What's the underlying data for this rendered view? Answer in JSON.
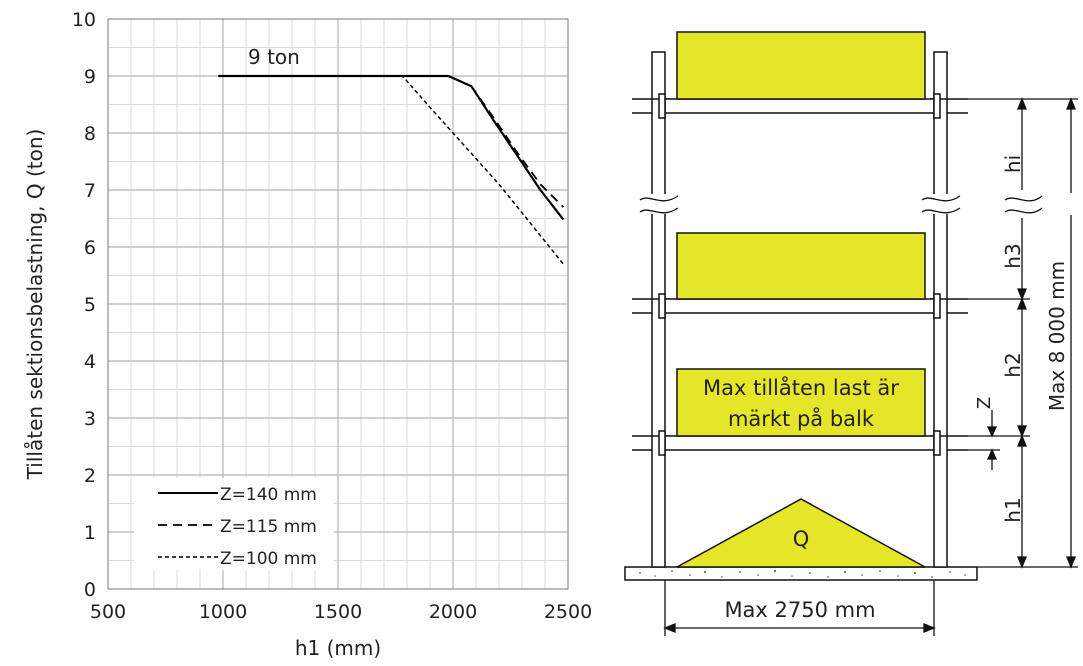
{
  "chart_data": {
    "type": "line",
    "xlabel": "h1 (mm)",
    "ylabel": "Tillåten sektionsbelastning, Q (ton)",
    "xlim": [
      500,
      2500
    ],
    "ylim": [
      0,
      10
    ],
    "x_ticks": [
      500,
      1000,
      1500,
      2000,
      2500
    ],
    "y_ticks": [
      0,
      1,
      2,
      3,
      4,
      5,
      6,
      7,
      8,
      9,
      10
    ],
    "grid": true,
    "legend_position": "bottom-left",
    "annotation": "9 ton",
    "series": [
      {
        "name": "Z=140 mm",
        "style": "solid",
        "x": [
          980,
          1980,
          2080,
          2180,
          2280,
          2380,
          2480
        ],
        "y": [
          9.0,
          9.0,
          8.82,
          8.2,
          7.6,
          7.0,
          6.48
        ]
      },
      {
        "name": "Z=115 mm",
        "style": "dashed",
        "x": [
          980,
          1980,
          2080,
          2180,
          2280,
          2380,
          2480
        ],
        "y": [
          9.0,
          9.0,
          8.82,
          8.25,
          7.65,
          7.1,
          6.7
        ]
      },
      {
        "name": "Z=100 mm",
        "style": "dotted",
        "x": [
          980,
          1780,
          1900,
          2000,
          2100,
          2200,
          2300,
          2400,
          2480
        ],
        "y": [
          9.0,
          9.0,
          8.45,
          8.0,
          7.55,
          7.1,
          6.6,
          6.1,
          5.7
        ]
      }
    ]
  },
  "diagram": {
    "labels": {
      "hi": "hi",
      "h3": "h3",
      "h2": "h2",
      "h1": "h1",
      "z": "Z",
      "total_height": "Max 8 000 mm",
      "width": "Max 2750 mm",
      "q": "Q",
      "note_line1": "Max tillåten last är",
      "note_line2": "märkt på balk"
    },
    "colors": {
      "load": "#e5e62a",
      "structure": "#111111"
    }
  }
}
